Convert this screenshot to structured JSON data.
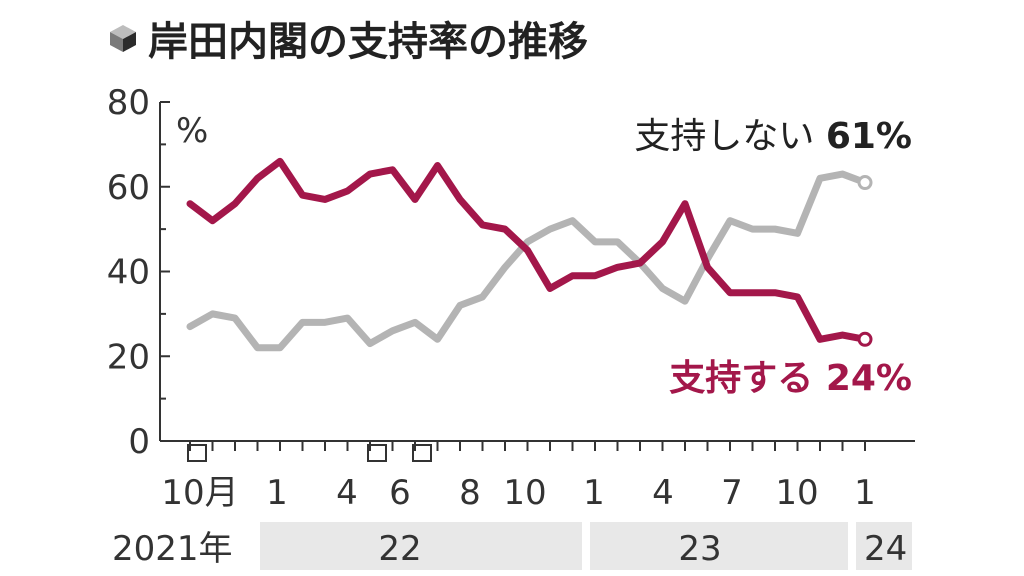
{
  "title": "岸田内閣の支持率の推移",
  "chart_data": {
    "type": "line",
    "title": "岸田内閣の支持率の推移",
    "unit": "%",
    "ylim": [
      0,
      80
    ],
    "y_ticks": [
      "80",
      "60",
      "40",
      "20",
      "0"
    ],
    "x_tick_labels": [
      "10月",
      "1",
      "4",
      "6",
      "8",
      "10",
      "1",
      "4",
      "7",
      "10",
      "1"
    ],
    "year_labels": [
      "2021年",
      "22",
      "23",
      "24"
    ],
    "series": [
      {
        "name": "支持しない",
        "end_label_value": "61%",
        "color": "#b4b4b4",
        "values": [
          27,
          30,
          29,
          22,
          22,
          28,
          28,
          29,
          23,
          26,
          28,
          24,
          32,
          34,
          41,
          47,
          50,
          52,
          47,
          47,
          42,
          36,
          33,
          43,
          52,
          50,
          50,
          49,
          62,
          63,
          61
        ]
      },
      {
        "name": "支持する",
        "end_label_value": "24%",
        "color": "#a3174a",
        "values": [
          56,
          52,
          56,
          62,
          66,
          58,
          57,
          59,
          63,
          64,
          57,
          65,
          57,
          51,
          50,
          45,
          36,
          39,
          39,
          41,
          42,
          47,
          56,
          41,
          35,
          35,
          35,
          34,
          24,
          25,
          24
        ]
      }
    ]
  }
}
